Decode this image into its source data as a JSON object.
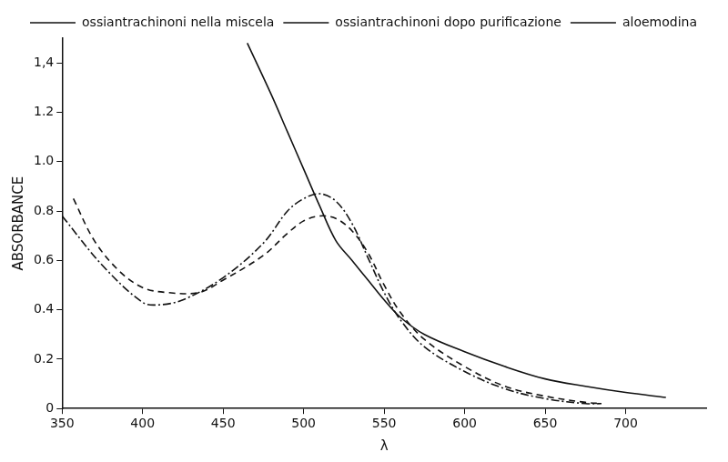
{
  "chart_data": {
    "type": "line",
    "x_label": "λ",
    "y_label": "ABSORBANCE",
    "xlim": [
      350,
      750
    ],
    "xticks": [
      350,
      400,
      450,
      500,
      550,
      600,
      650,
      700
    ],
    "ylim": [
      0,
      1.5
    ],
    "yticks": [
      0,
      0.2,
      0.4,
      0.6,
      0.8,
      {
        "value": 1,
        "label": "1.0"
      },
      1.2,
      {
        "value": 1.4,
        "label": "1,4"
      }
    ],
    "grid": false,
    "legend": "top right",
    "series": [
      {
        "name": "ossiantrachinoni nella miscela",
        "color": "#111111",
        "line_style": "solid",
        "x": [
          465,
          480,
          490,
          500,
          510,
          520,
          530,
          540,
          550,
          560,
          575,
          600,
          625,
          650,
          675,
          700,
          725
        ],
        "values": [
          1.48,
          1.27,
          1.12,
          0.97,
          0.82,
          0.68,
          0.6,
          0.52,
          0.44,
          0.37,
          0.3,
          0.23,
          0.17,
          0.12,
          0.09,
          0.065,
          0.045
        ]
      },
      {
        "name": "ossiantrachinoni dopo purificazione",
        "color": "#111111",
        "line_style": "dashdot",
        "x": [
          350,
          375,
          400,
          410,
          425,
          450,
          475,
          490,
          500,
          510,
          520,
          530,
          540,
          550,
          560,
          575,
          600,
          625,
          650,
          675,
          685
        ],
        "values": [
          0.78,
          0.58,
          0.43,
          0.42,
          0.44,
          0.53,
          0.67,
          0.8,
          0.85,
          0.87,
          0.84,
          0.75,
          0.61,
          0.47,
          0.36,
          0.25,
          0.15,
          0.08,
          0.04,
          0.02,
          0.02
        ]
      },
      {
        "name": "aloemodina",
        "color": "#111111",
        "line_style": "dashed",
        "x": [
          357,
          370,
          385,
          400,
          415,
          435,
          450,
          475,
          490,
          500,
          510,
          520,
          530,
          540,
          550,
          560,
          575,
          600,
          625,
          650,
          675,
          685
        ],
        "values": [
          0.85,
          0.68,
          0.56,
          0.49,
          0.47,
          0.47,
          0.52,
          0.62,
          0.71,
          0.76,
          0.78,
          0.77,
          0.72,
          0.63,
          0.5,
          0.39,
          0.28,
          0.17,
          0.09,
          0.05,
          0.025,
          0.02
        ]
      }
    ]
  }
}
